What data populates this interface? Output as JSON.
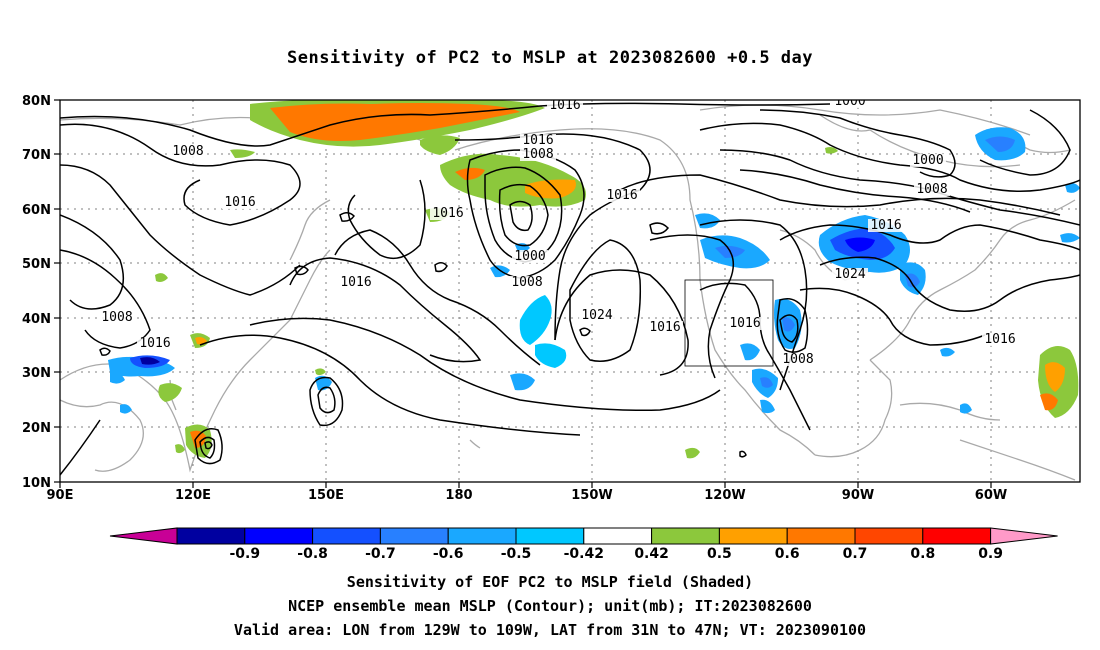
{
  "title": "Sensitivity of PC2 to MSLP at 2023082600 +0.5 day",
  "map": {
    "lon_range": [
      "90E",
      "50W"
    ],
    "lat_range": [
      "10N",
      "80N"
    ],
    "y_ticks": [
      "80N",
      "70N",
      "60N",
      "50N",
      "40N",
      "30N",
      "20N",
      "10N"
    ],
    "x_ticks": [
      "90E",
      "120E",
      "150E",
      "180",
      "150W",
      "120W",
      "90W",
      "60W"
    ],
    "grid": "dotted",
    "contour_labels": [
      "1016",
      "1000",
      "1016",
      "1008",
      "1000",
      "1008",
      "1008",
      "1016",
      "1016",
      "1016",
      "1000",
      "1008",
      "1024",
      "1016",
      "1016",
      "1016",
      "1024",
      "1016",
      "1016",
      "1008",
      "1008",
      "1016"
    ],
    "validation_box": {
      "lon": [
        "129W",
        "109W"
      ],
      "lat": [
        "31N",
        "47N"
      ]
    }
  },
  "colorbar": {
    "labels": [
      "-0.9",
      "-0.8",
      "-0.7",
      "-0.6",
      "-0.5",
      "-0.42",
      "0.42",
      "0.5",
      "0.6",
      "0.7",
      "0.8",
      "0.9"
    ],
    "colors": [
      "#0000a0",
      "#0000ff",
      "#1450ff",
      "#2880ff",
      "#1aa8ff",
      "#00c8ff",
      "#ffffff",
      "#8cc83c",
      "#ffa000",
      "#ff7800",
      "#ff4600",
      "#ff0000"
    ],
    "low_end_color": "#c80096",
    "high_end_color": "#ff9ac8"
  },
  "captions": [
    "Sensitivity of EOF PC2 to MSLP field (Shaded)",
    "NCEP ensemble mean MSLP (Contour); unit(mb); IT:2023082600",
    "Valid area: LON from 129W to 109W, LAT from 31N to 47N; VT: 2023090100"
  ]
}
